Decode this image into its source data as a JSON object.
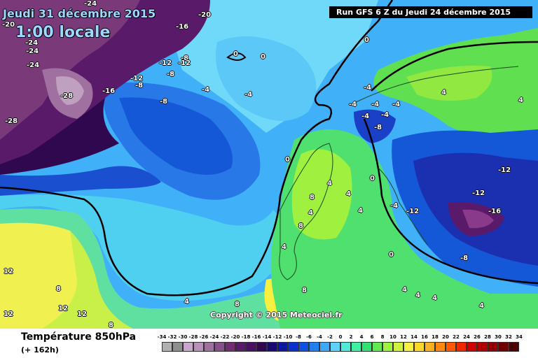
{
  "header": {
    "date_label": "Jeudi 31 décembre 2015",
    "local_time": "1:00 locale",
    "run_label": "Run GFS 6 Z du Jeudi 24 décembre 2015"
  },
  "copyright": "Copyright © 2015 Meteociel.fr",
  "footer": {
    "variable_title": "Température 850hPa",
    "lead_time": "(+ 162h)"
  },
  "legend": {
    "values": [
      "-34",
      "-32",
      "-30",
      "-28",
      "-26",
      "-24",
      "-22",
      "-20",
      "-18",
      "-16",
      "-14",
      "-12",
      "-10",
      "-8",
      "-6",
      "-4",
      "-2",
      "0",
      "2",
      "4",
      "6",
      "8",
      "10",
      "12",
      "14",
      "16",
      "18",
      "20",
      "22",
      "24",
      "26",
      "28",
      "30",
      "32",
      "34"
    ],
    "colors": [
      "#b0b0b0",
      "#8e8e8e",
      "#c8a8c8",
      "#b890b8",
      "#a070a0",
      "#885088",
      "#703070",
      "#5a1a6a",
      "#4a1060",
      "#300850",
      "#1a0a70",
      "#0a1aa0",
      "#0a30c8",
      "#1050e0",
      "#2080f0",
      "#40a8f8",
      "#60d0ff",
      "#50e8d8",
      "#40f0a0",
      "#30e070",
      "#60e850",
      "#a0f040",
      "#d0f040",
      "#f8f040",
      "#ffd830",
      "#ffb020",
      "#ff8810",
      "#ff5a00",
      "#f02800",
      "#d00000",
      "#b00000",
      "#900000",
      "#700000",
      "#500000"
    ]
  },
  "map": {
    "isotherm_labels": [
      {
        "text": "-24"
      },
      {
        "text": "-20"
      },
      {
        "text": "-20"
      },
      {
        "text": "-16"
      },
      {
        "text": "-24"
      },
      {
        "text": "-24"
      },
      {
        "text": "-24"
      },
      {
        "text": "-28"
      },
      {
        "text": "-28"
      },
      {
        "text": "-16"
      },
      {
        "text": "-12"
      },
      {
        "text": "-12"
      },
      {
        "text": "-8"
      },
      {
        "text": "-8"
      },
      {
        "text": "-12"
      },
      {
        "text": "-8"
      },
      {
        "text": "-4"
      },
      {
        "text": "-8"
      },
      {
        "text": "-4"
      },
      {
        "text": "0"
      },
      {
        "text": "0"
      },
      {
        "text": "0"
      },
      {
        "text": "-4"
      },
      {
        "text": "-4"
      },
      {
        "text": "-4"
      },
      {
        "text": "-4"
      },
      {
        "text": "-4"
      },
      {
        "text": "4"
      },
      {
        "text": "4"
      },
      {
        "text": "-4"
      },
      {
        "text": "-8"
      },
      {
        "text": "-12"
      },
      {
        "text": "-12"
      },
      {
        "text": "-16"
      },
      {
        "text": "-12"
      },
      {
        "text": "-8"
      },
      {
        "text": "-4"
      },
      {
        "text": "0"
      },
      {
        "text": "0"
      },
      {
        "text": "4"
      },
      {
        "text": "4"
      },
      {
        "text": "8"
      },
      {
        "text": "8"
      },
      {
        "text": "4"
      },
      {
        "text": "4"
      },
      {
        "text": "4"
      },
      {
        "text": "4"
      },
      {
        "text": "4"
      },
      {
        "text": "8"
      },
      {
        "text": "8"
      },
      {
        "text": "12"
      },
      {
        "text": "12"
      },
      {
        "text": "12"
      },
      {
        "text": "12"
      },
      {
        "text": "8"
      },
      {
        "text": "4"
      },
      {
        "text": "8"
      },
      {
        "text": "0"
      },
      {
        "text": "4"
      },
      {
        "text": "4"
      }
    ]
  }
}
